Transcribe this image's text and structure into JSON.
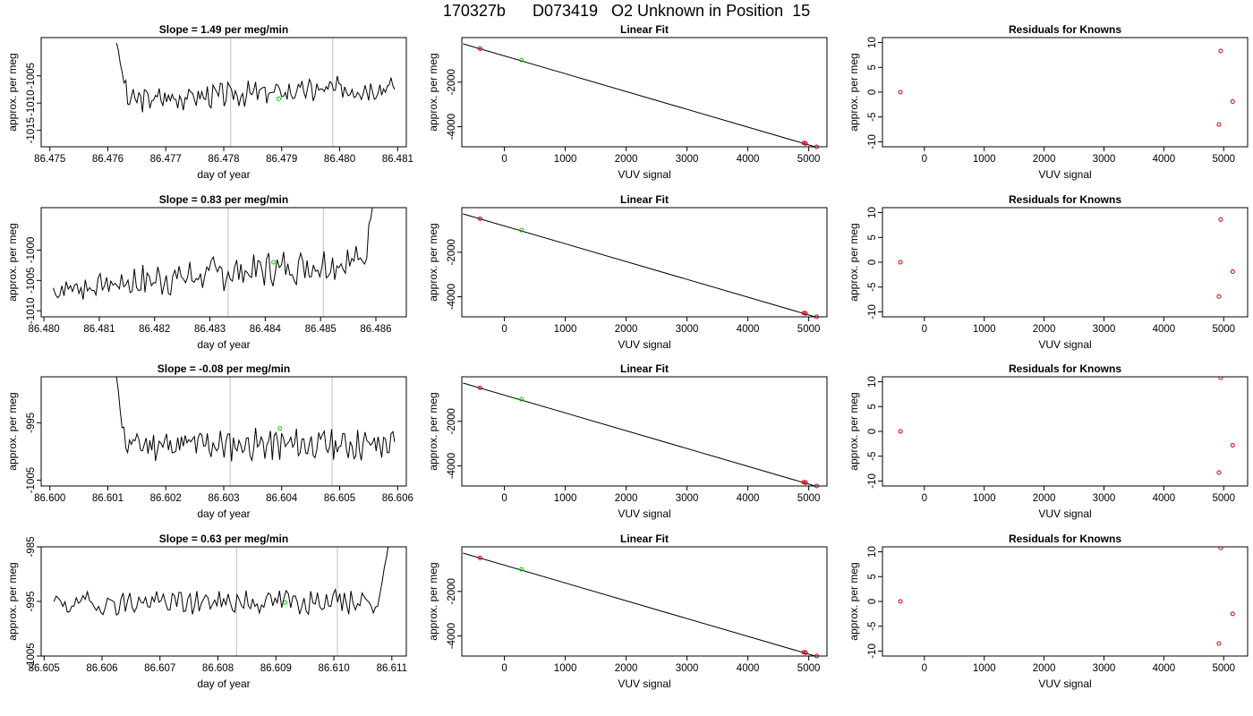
{
  "figure_title": "170327b      D073419   O2 Unknown in Position  15",
  "colors": {
    "trace": "#000000",
    "axis": "#000000",
    "vline": "#c0c0c0",
    "known_point": "#cc0000",
    "unknown_point": "#00cc00"
  },
  "chart_data": [
    {
      "id": "r1-timeseries",
      "type": "line",
      "title": "Slope =  1.49  per meg/min",
      "xlabel": "day of year",
      "ylabel": "approx. per meg",
      "xlim": [
        86.47485,
        86.48115
      ],
      "ylim": [
        -1018,
        -998
      ],
      "ylim_reversed": true,
      "xticks": [
        86.475,
        86.476,
        86.477,
        86.478,
        86.479,
        86.48,
        86.481
      ],
      "xtick_labels": [
        "86.475",
        "86.476",
        "86.477",
        "86.478",
        "86.479",
        "86.480",
        "86.481"
      ],
      "yticks": [
        -1005,
        -1010,
        -1015
      ],
      "ytick_labels": [
        "-1005",
        "-1010",
        "-1015"
      ],
      "series": [
        {
          "x_start": 86.47615,
          "x_end": 86.48095,
          "start_value": -999,
          "base": -1009.5,
          "trend": 2.6,
          "amplitude": 1.8,
          "seed": 3,
          "lead_in": 18
        }
      ],
      "vlines": [
        86.47812,
        86.47988
      ],
      "unknown_point": {
        "x": 86.47895,
        "y": -1009.2
      }
    },
    {
      "id": "r1-linearfit",
      "type": "scatter",
      "title": "Linear Fit",
      "xlabel": "VUV signal",
      "ylabel": "approx. per meg",
      "xlim": [
        -700,
        5300
      ],
      "ylim": [
        -4900,
        0
      ],
      "ylim_reversed": true,
      "xticks": [
        0,
        1000,
        2000,
        3000,
        4000,
        5000
      ],
      "xtick_labels": [
        "0",
        "1000",
        "2000",
        "3000",
        "4000",
        "5000"
      ],
      "yticks": [
        -2000,
        -4000
      ],
      "ytick_labels": [
        "-2000",
        "-4000"
      ],
      "fit_line": {
        "x": [
          -680,
          5130
        ],
        "y": [
          -280,
          -4920
        ]
      },
      "known_points": [
        {
          "x": -400,
          "y": -495
        },
        {
          "x": 4920,
          "y": -4730
        },
        {
          "x": 4950,
          "y": -4750
        },
        {
          "x": 5130,
          "y": -4900
        }
      ],
      "unknown_points": [
        {
          "x": 280,
          "y": -1010
        }
      ]
    },
    {
      "id": "r1-residuals",
      "type": "scatter",
      "title": "Residuals for Knowns",
      "xlabel": "VUV signal",
      "ylabel": "approx. per meg",
      "xlim": [
        -700,
        5400
      ],
      "ylim": [
        -11,
        11
      ],
      "xticks": [
        0,
        1000,
        2000,
        3000,
        4000,
        5000
      ],
      "xtick_labels": [
        "0",
        "1000",
        "2000",
        "3000",
        "4000",
        "5000"
      ],
      "yticks": [
        -10,
        -5,
        0,
        5,
        10
      ],
      "ytick_labels": [
        "-10",
        "-5",
        "0",
        "5",
        "10"
      ],
      "points": [
        {
          "x": -400,
          "y": 0
        },
        {
          "x": 4950,
          "y": 8.3
        },
        {
          "x": 5150,
          "y": -1.9
        },
        {
          "x": 4920,
          "y": -6.5
        }
      ]
    },
    {
      "id": "r2-timeseries",
      "type": "line",
      "title": "Slope =  0.83  per meg/min",
      "xlabel": "day of year",
      "ylabel": "approx. per meg",
      "xlim": [
        86.47995,
        86.48655
      ],
      "ylim": [
        -1011,
        -993
      ],
      "ylim_reversed": true,
      "xticks": [
        86.48,
        86.481,
        86.482,
        86.483,
        86.484,
        86.485,
        86.486
      ],
      "xtick_labels": [
        "86.480",
        "86.481",
        "86.482",
        "86.483",
        "86.484",
        "86.485",
        "86.486"
      ],
      "yticks": [
        -1000,
        -1005,
        -1010
      ],
      "ytick_labels": [
        "-1000",
        "-1005",
        "-1010"
      ],
      "series": [
        {
          "x_start": 86.48017,
          "x_end": 86.48595,
          "start_value": -1005,
          "base": -1006.5,
          "trend": 5.0,
          "amplitude": 2.3,
          "seed": 7,
          "lead_in": 0,
          "tail_out": -992
        }
      ],
      "vlines": [
        86.48333,
        86.48505
      ],
      "unknown_point": {
        "x": 86.48415,
        "y": -1002.0
      }
    },
    {
      "id": "r2-linearfit",
      "type": "scatter",
      "title": "Linear Fit",
      "xlabel": "VUV signal",
      "ylabel": "approx. per meg",
      "xlim": [
        -700,
        5300
      ],
      "ylim": [
        -4900,
        0
      ],
      "ylim_reversed": true,
      "xticks": [
        0,
        1000,
        2000,
        3000,
        4000,
        5000
      ],
      "xtick_labels": [
        "0",
        "1000",
        "2000",
        "3000",
        "4000",
        "5000"
      ],
      "yticks": [
        -2000,
        -4000
      ],
      "ytick_labels": [
        "-2000",
        "-4000"
      ],
      "fit_line": {
        "x": [
          -680,
          5130
        ],
        "y": [
          -280,
          -4920
        ]
      },
      "known_points": [
        {
          "x": -400,
          "y": -495
        },
        {
          "x": 4920,
          "y": -4730
        },
        {
          "x": 4950,
          "y": -4750
        },
        {
          "x": 5130,
          "y": -4900
        }
      ],
      "unknown_points": [
        {
          "x": 280,
          "y": -1010
        }
      ]
    },
    {
      "id": "r2-residuals",
      "type": "scatter",
      "title": "Residuals for Knowns",
      "xlabel": "VUV signal",
      "ylabel": "approx. per meg",
      "xlim": [
        -700,
        5400
      ],
      "ylim": [
        -11,
        11
      ],
      "xticks": [
        0,
        1000,
        2000,
        3000,
        4000,
        5000
      ],
      "xtick_labels": [
        "0",
        "1000",
        "2000",
        "3000",
        "4000",
        "5000"
      ],
      "yticks": [
        -10,
        -5,
        0,
        5,
        10
      ],
      "ytick_labels": [
        "-10",
        "-5",
        "0",
        "5",
        "10"
      ],
      "points": [
        {
          "x": -400,
          "y": 0
        },
        {
          "x": 4950,
          "y": 8.6
        },
        {
          "x": 5150,
          "y": -1.9
        },
        {
          "x": 4920,
          "y": -6.9
        }
      ]
    },
    {
      "id": "r3-timeseries",
      "type": "line",
      "title": "Slope =  -0.08  per meg/min",
      "xlabel": "day of year",
      "ylabel": "approx. per meg",
      "xlim": [
        86.59985,
        86.60615
      ],
      "ylim": [
        -1006,
        -987
      ],
      "ylim_reversed": true,
      "xticks": [
        86.6,
        86.601,
        86.602,
        86.603,
        86.604,
        86.605,
        86.606
      ],
      "xtick_labels": [
        "86.600",
        "86.601",
        "86.602",
        "86.603",
        "86.604",
        "86.605",
        "86.606"
      ],
      "yticks": [
        -995,
        -1005
      ],
      "ytick_labels": [
        "-995",
        "-1005"
      ],
      "series": [
        {
          "x_start": 86.60115,
          "x_end": 86.60595,
          "start_value": -987,
          "base": -998.8,
          "trend": 0,
          "amplitude": 2.2,
          "seed": 11,
          "lead_in": 14
        }
      ],
      "vlines": [
        86.60311,
        86.60487
      ],
      "unknown_point": {
        "x": 86.60397,
        "y": -996.0
      }
    },
    {
      "id": "r3-linearfit",
      "type": "scatter",
      "title": "Linear Fit",
      "xlabel": "VUV signal",
      "ylabel": "approx. per meg",
      "xlim": [
        -700,
        5300
      ],
      "ylim": [
        -4900,
        0
      ],
      "ylim_reversed": true,
      "xticks": [
        0,
        1000,
        2000,
        3000,
        4000,
        5000
      ],
      "xtick_labels": [
        "0",
        "1000",
        "2000",
        "3000",
        "4000",
        "5000"
      ],
      "yticks": [
        -2000,
        -4000
      ],
      "ytick_labels": [
        "-2000",
        "-4000"
      ],
      "fit_line": {
        "x": [
          -680,
          5130
        ],
        "y": [
          -280,
          -4920
        ]
      },
      "known_points": [
        {
          "x": -400,
          "y": -495
        },
        {
          "x": 4920,
          "y": -4730
        },
        {
          "x": 4950,
          "y": -4750
        },
        {
          "x": 5130,
          "y": -4900
        }
      ],
      "unknown_points": [
        {
          "x": 280,
          "y": -1010
        }
      ]
    },
    {
      "id": "r3-residuals",
      "type": "scatter",
      "title": "Residuals for Knowns",
      "xlabel": "VUV signal",
      "ylabel": "approx. per meg",
      "xlim": [
        -700,
        5400
      ],
      "ylim": [
        -11,
        11
      ],
      "xticks": [
        0,
        1000,
        2000,
        3000,
        4000,
        5000
      ],
      "xtick_labels": [
        "0",
        "1000",
        "2000",
        "3000",
        "4000",
        "5000"
      ],
      "yticks": [
        -10,
        -5,
        0,
        5,
        10
      ],
      "ytick_labels": [
        "-10",
        "-5",
        "0",
        "5",
        "10"
      ],
      "points": [
        {
          "x": -400,
          "y": 0
        },
        {
          "x": 4950,
          "y": 10.8
        },
        {
          "x": 5150,
          "y": -2.8
        },
        {
          "x": 4920,
          "y": -8.3
        }
      ]
    },
    {
      "id": "r4-timeseries",
      "type": "line",
      "title": "Slope =  0.63  per meg/min",
      "xlabel": "day of year",
      "ylabel": "approx. per meg",
      "xlim": [
        86.60495,
        86.61125
      ],
      "ylim": [
        -1005,
        -985
      ],
      "ylim_reversed": true,
      "xticks": [
        86.605,
        86.606,
        86.607,
        86.608,
        86.609,
        86.61,
        86.611
      ],
      "xtick_labels": [
        "86.605",
        "86.606",
        "86.607",
        "86.608",
        "86.609",
        "86.610",
        "86.611"
      ],
      "yticks": [
        -985,
        -995,
        -1005
      ],
      "ytick_labels": [
        "-985",
        "-995",
        "-1005"
      ],
      "series": [
        {
          "x_start": 86.60517,
          "x_end": 86.61095,
          "start_value": -995,
          "base": -995.4,
          "trend": 0.6,
          "amplitude": 1.9,
          "seed": 19,
          "lead_in": 0,
          "tail_out": -984
        }
      ],
      "vlines": [
        86.60832,
        86.61006
      ],
      "unknown_point": {
        "x": 86.60916,
        "y": -995.2
      }
    },
    {
      "id": "r4-linearfit",
      "type": "scatter",
      "title": "Linear Fit",
      "xlabel": "VUV signal",
      "ylabel": "approx. per meg",
      "xlim": [
        -700,
        5300
      ],
      "ylim": [
        -4900,
        0
      ],
      "ylim_reversed": true,
      "xticks": [
        0,
        1000,
        2000,
        3000,
        4000,
        5000
      ],
      "xtick_labels": [
        "0",
        "1000",
        "2000",
        "3000",
        "4000",
        "5000"
      ],
      "yticks": [
        -2000,
        -4000
      ],
      "ytick_labels": [
        "-2000",
        "-4000"
      ],
      "fit_line": {
        "x": [
          -680,
          5130
        ],
        "y": [
          -280,
          -4920
        ]
      },
      "known_points": [
        {
          "x": -400,
          "y": -495
        },
        {
          "x": 4920,
          "y": -4730
        },
        {
          "x": 4950,
          "y": -4750
        },
        {
          "x": 5130,
          "y": -4900
        }
      ],
      "unknown_points": [
        {
          "x": 280,
          "y": -1010
        }
      ]
    },
    {
      "id": "r4-residuals",
      "type": "scatter",
      "title": "Residuals for Knowns",
      "xlabel": "VUV signal",
      "ylabel": "approx. per meg",
      "xlim": [
        -700,
        5400
      ],
      "ylim": [
        -11,
        11
      ],
      "xticks": [
        0,
        1000,
        2000,
        3000,
        4000,
        5000
      ],
      "xtick_labels": [
        "0",
        "1000",
        "2000",
        "3000",
        "4000",
        "5000"
      ],
      "yticks": [
        -10,
        -5,
        0,
        5,
        10
      ],
      "ytick_labels": [
        "-10",
        "-5",
        "0",
        "5",
        "10"
      ],
      "points": [
        {
          "x": -400,
          "y": 0
        },
        {
          "x": 4950,
          "y": 10.8
        },
        {
          "x": 5150,
          "y": -2.5
        },
        {
          "x": 4920,
          "y": -8.5
        }
      ]
    }
  ]
}
